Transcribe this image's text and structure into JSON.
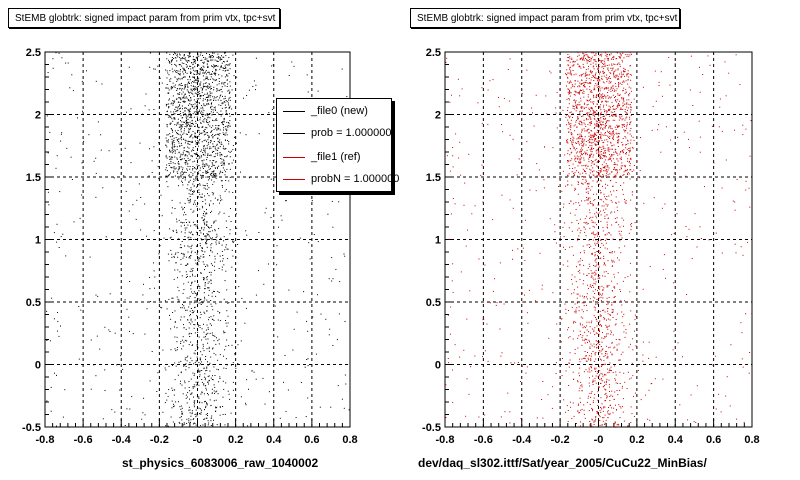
{
  "chart_data": [
    {
      "type": "scatter",
      "title": "StEMB globtrk: signed impact param from prim vtx, tpc+svt",
      "xlabel": "st_physics_6083006_raw_1040002",
      "ylabel": "",
      "xlim": [
        -0.8,
        0.8
      ],
      "ylim": [
        -0.5,
        2.5
      ],
      "x_ticks": [
        "-0.8",
        "-0.6",
        "-0.4",
        "-0.2",
        "-0",
        "0.2",
        "0.4",
        "0.6",
        "0.8"
      ],
      "y_ticks": [
        "-0.5",
        "0",
        "0.5",
        "1",
        "1.5",
        "2",
        "2.5"
      ],
      "grid": true,
      "marker_color": "#000000",
      "distribution": {
        "peak_x": 0.0,
        "x_width": 0.08,
        "dense_band_y": [
          1.5,
          2.5
        ],
        "dense_band_x_range": [
          -0.17,
          0.17
        ]
      },
      "legend": {
        "placement": "top-right",
        "entries": [
          {
            "label": "_file0 (new)",
            "color": "#000000"
          },
          {
            "label": "prob = 1.000000",
            "color": "#000000"
          },
          {
            "label": "_file1 (ref)",
            "color": "#cc0000"
          },
          {
            "label": "probN = 1.000000",
            "color": "#cc0000"
          }
        ]
      }
    },
    {
      "type": "scatter",
      "title": "StEMB globtrk: signed impact param from prim vtx, tpc+svt",
      "xlabel": "dev/daq_sl302.ittf/Sat/year_2005/CuCu22_MinBias/",
      "ylabel": "",
      "xlim": [
        -0.8,
        0.8
      ],
      "ylim": [
        -0.5,
        2.5
      ],
      "x_ticks": [
        "-0.8",
        "-0.6",
        "-0.4",
        "-0.2",
        "-0",
        "0.2",
        "0.4",
        "0.6",
        "0.8"
      ],
      "y_ticks": [
        "-0.5",
        "0",
        "0.5",
        "1",
        "1.5",
        "2",
        "2.5"
      ],
      "grid": true,
      "marker_color": "#cc0000",
      "distribution": {
        "peak_x": 0.0,
        "x_width": 0.08,
        "dense_band_y": [
          1.5,
          2.5
        ],
        "dense_band_x_range": [
          -0.17,
          0.17
        ]
      }
    }
  ]
}
